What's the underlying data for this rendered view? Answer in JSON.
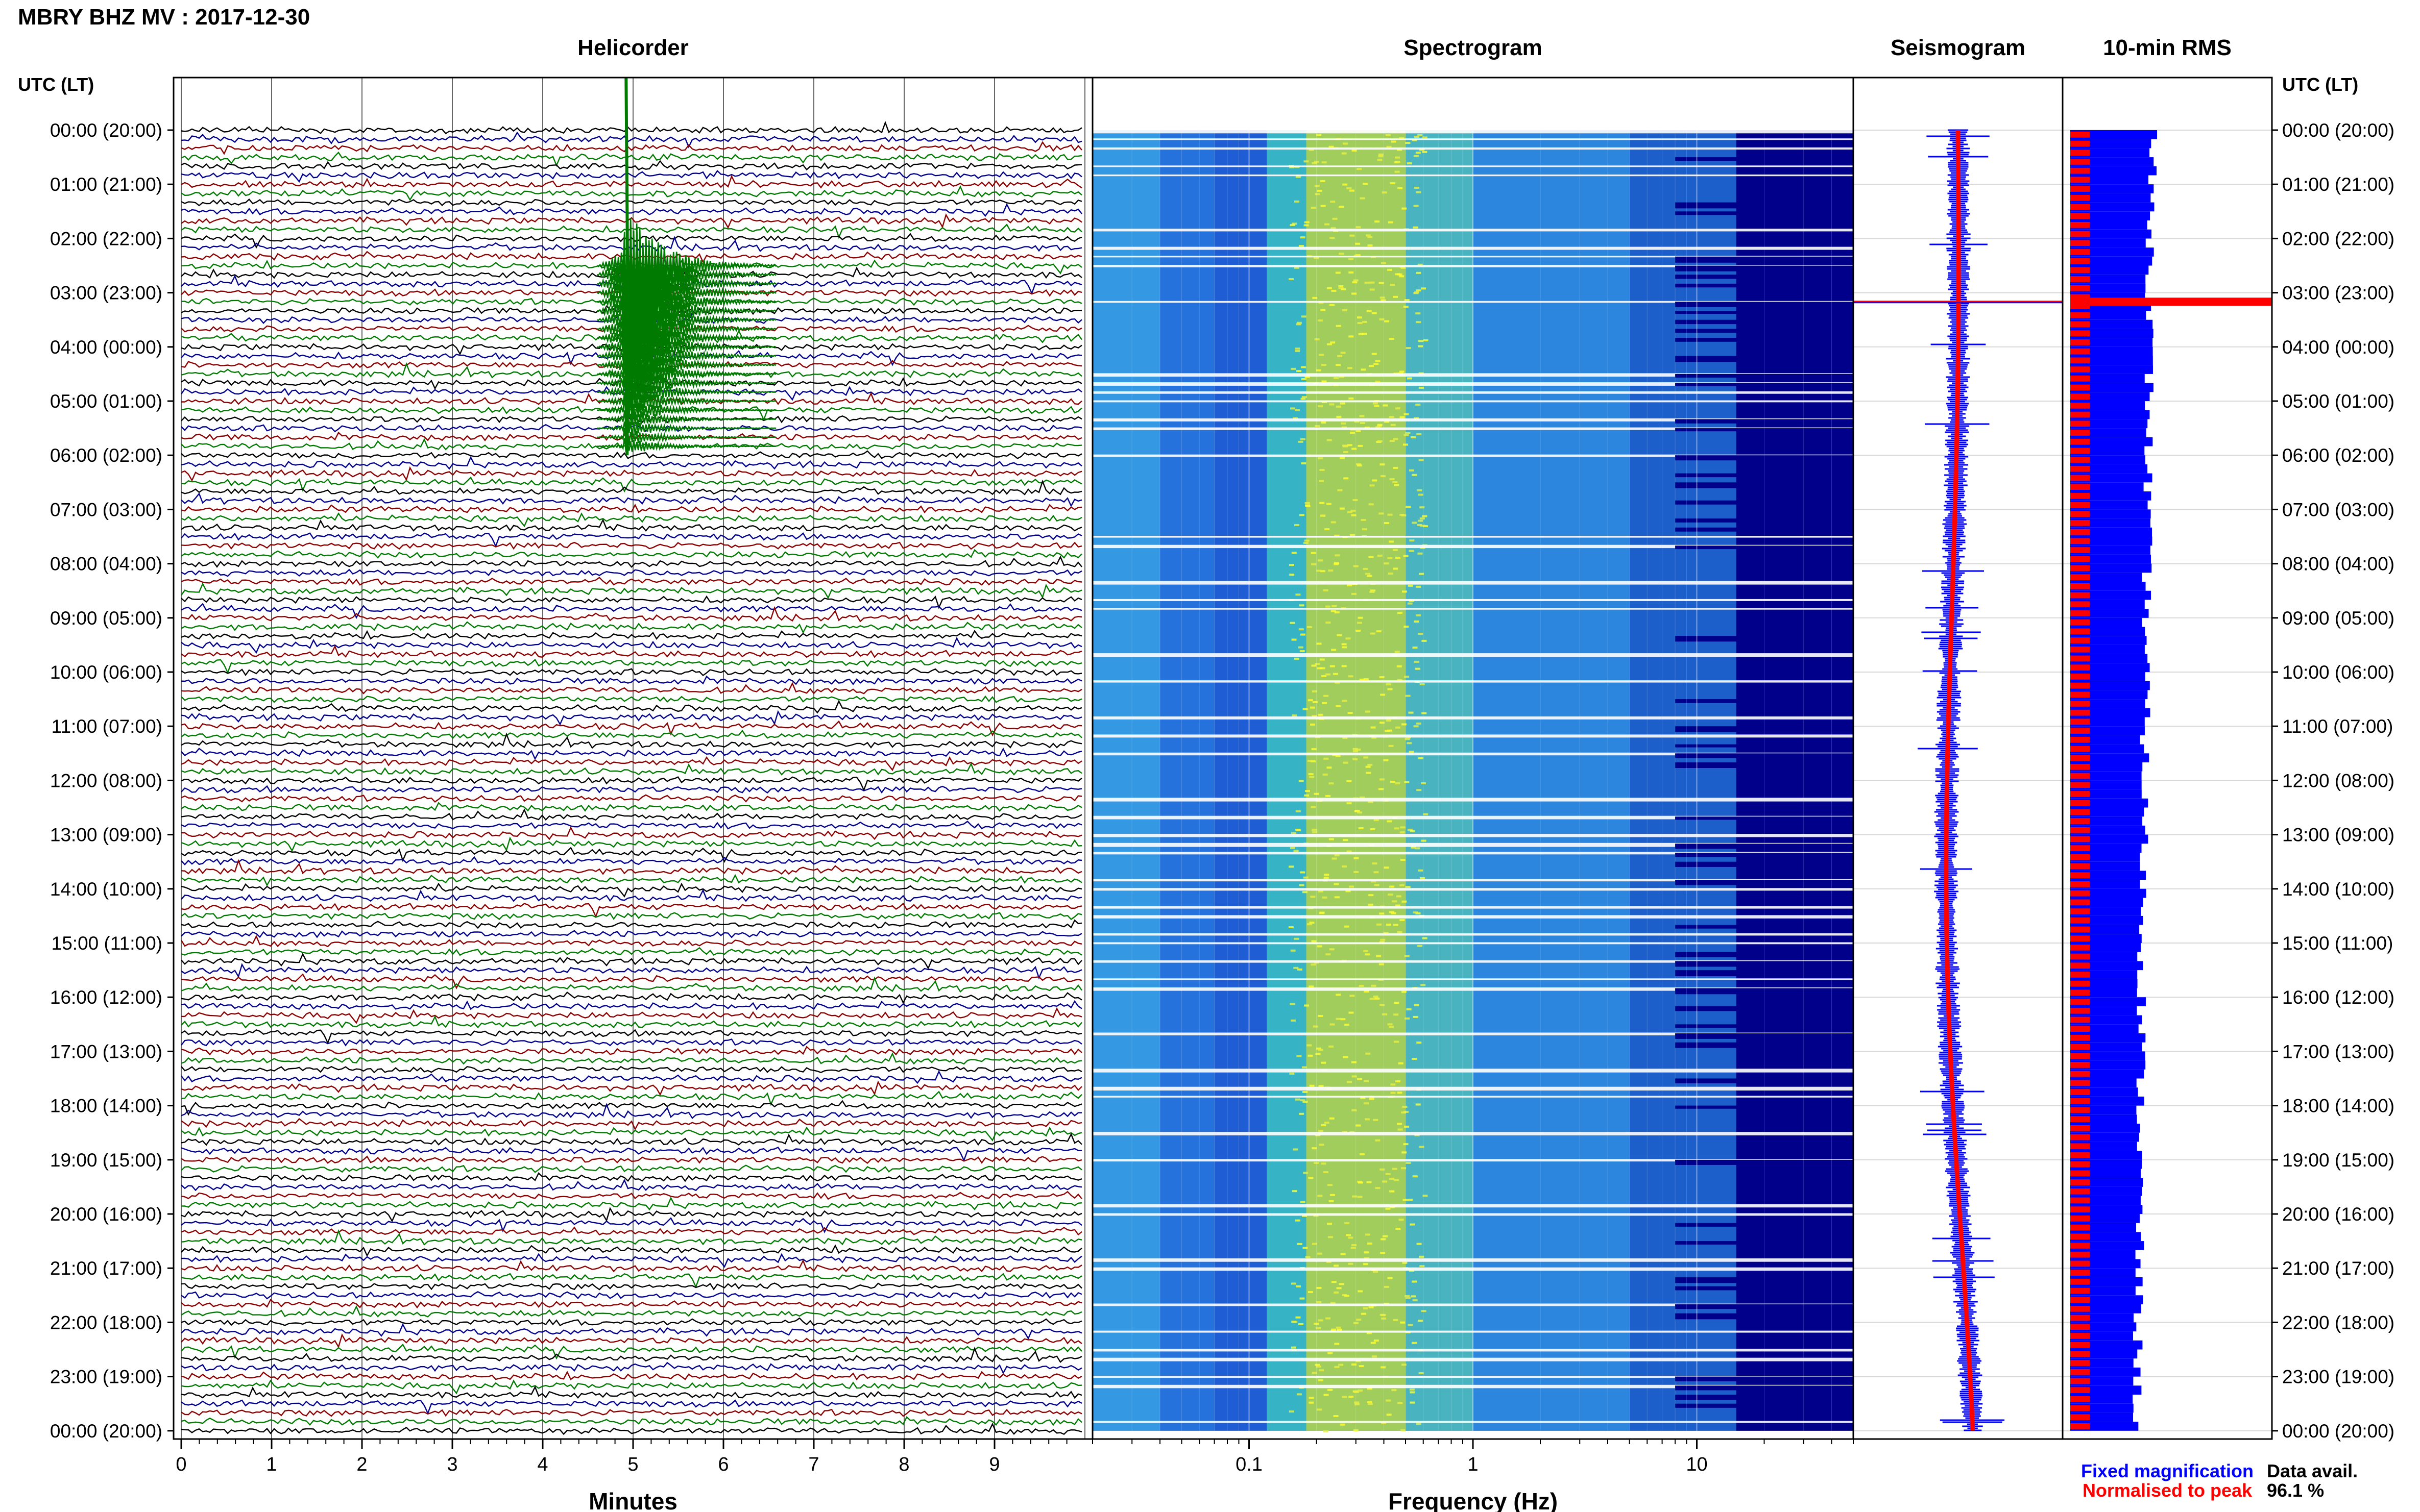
{
  "header": {
    "title": "MBRY BHZ MV : 2017-12-30"
  },
  "panels": {
    "helicorder": {
      "title": "Helicorder",
      "xlabel": "Minutes"
    },
    "spectrogram": {
      "title": "Spectrogram",
      "xlabel": "Frequency (Hz)"
    },
    "seismogram": {
      "title": "Seismogram"
    },
    "rms": {
      "title": "10-min RMS"
    }
  },
  "axis_label_left": "UTC (LT)",
  "axis_label_right": "UTC (LT)",
  "time_labels": [
    "00:00 (20:00)",
    "01:00 (21:00)",
    "02:00 (22:00)",
    "03:00 (23:00)",
    "04:00 (00:00)",
    "05:00 (01:00)",
    "06:00 (02:00)",
    "07:00 (03:00)",
    "08:00 (04:00)",
    "09:00 (05:00)",
    "10:00 (06:00)",
    "11:00 (07:00)",
    "12:00 (08:00)",
    "13:00 (09:00)",
    "14:00 (10:00)",
    "15:00 (11:00)",
    "16:00 (12:00)",
    "17:00 (13:00)",
    "18:00 (14:00)",
    "19:00 (15:00)",
    "20:00 (16:00)",
    "21:00 (17:00)",
    "22:00 (18:00)",
    "23:00 (19:00)",
    "00:00 (20:00)"
  ],
  "legend": {
    "fixed": "Fixed magnification",
    "normalised": "Normalised to peak",
    "fixed_color": "#0000ff",
    "normalised_color": "#ff0000"
  },
  "data_avail": {
    "label": "Data avail.",
    "value": "96.1 %"
  },
  "colors": {
    "trace_cycle": [
      "#000000",
      "#00008b",
      "#8b0000",
      "#007a00"
    ],
    "spectrogram_low": "#00008b",
    "spectrogram_high": "#ffff00"
  },
  "chart_data": [
    {
      "type": "line",
      "name": "Helicorder",
      "xlabel": "Minutes",
      "xticks": [
        "0",
        "1",
        "2",
        "3",
        "4",
        "5",
        "6",
        "7",
        "8",
        "9"
      ],
      "xlim": [
        0,
        10
      ],
      "lines_per_hour": 6,
      "event": {
        "start_time_utc": "02:30",
        "peak_minute": 4.9,
        "decay_end_minute": 6.6
      }
    },
    {
      "type": "heatmap",
      "name": "Spectrogram",
      "xlabel": "Frequency (Hz)",
      "xscale": "log",
      "xticks": [
        "0.1",
        "1",
        "10"
      ],
      "xlim": [
        0.02,
        50
      ]
    },
    {
      "type": "line",
      "name": "Seismogram"
    },
    {
      "type": "bar",
      "name": "10-min RMS",
      "orientation": "horizontal",
      "spike_time_utc": "03:10"
    }
  ]
}
